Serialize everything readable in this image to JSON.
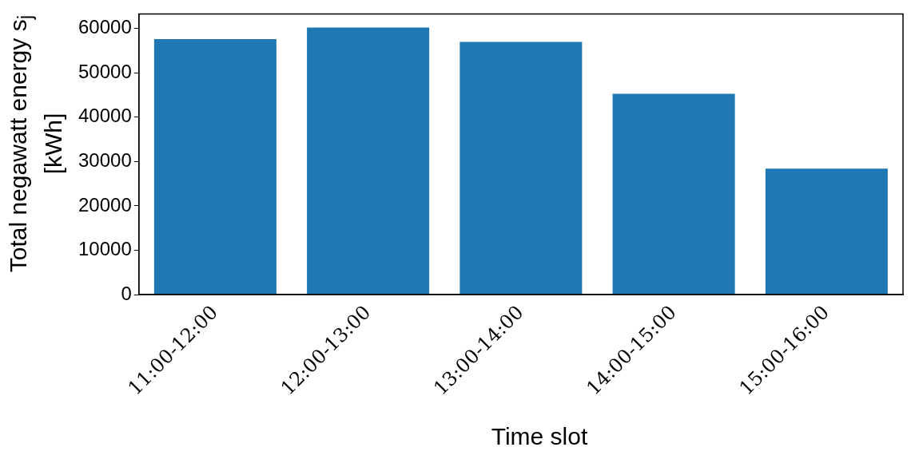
{
  "chart_data": {
    "type": "bar",
    "xlabel": "Time slot",
    "ylabel": "Total negawatt energy s$_{j}$ [kWh]",
    "categories": [
      "11:00-12:00",
      "12:00-13:00",
      "13:00-14:00",
      "14:00-15:00",
      "15:00-16:00"
    ],
    "values": [
      57600,
      60200,
      57000,
      45300,
      28400
    ],
    "color": "#1f77b4",
    "ylim": [
      0,
      63300
    ],
    "yticks": [
      0,
      10000,
      20000,
      30000,
      40000,
      50000,
      60000
    ],
    "grid": false,
    "legend": false
  }
}
